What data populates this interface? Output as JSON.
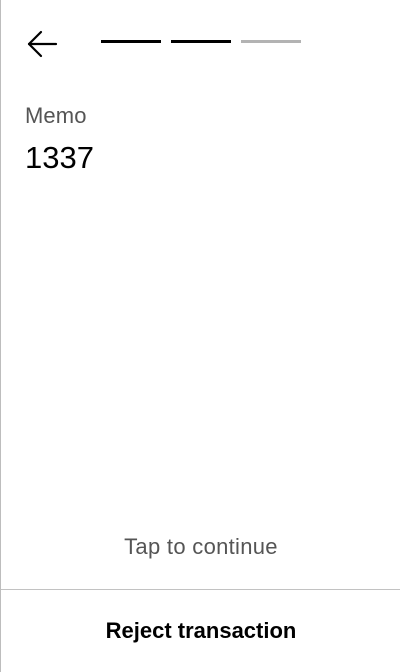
{
  "header": {
    "back_icon": "arrow-left-icon",
    "progress": {
      "total_steps": 3,
      "completed_steps": 2,
      "active_color": "#000000",
      "inactive_color": "#b3b3b3"
    }
  },
  "main": {
    "memo_label": "Memo",
    "memo_value": "1337"
  },
  "footer": {
    "tap_prompt": "Tap to continue",
    "reject_label": "Reject transaction"
  }
}
